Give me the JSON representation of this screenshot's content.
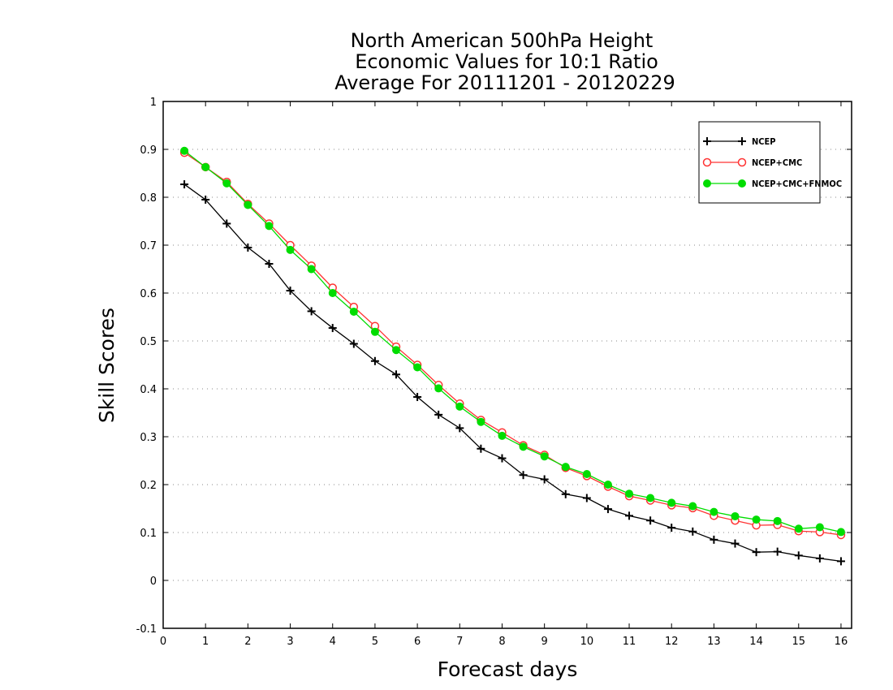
{
  "chart_data": {
    "type": "line",
    "title": [
      "North American 500hPa Height",
      "Economic Values for 10:1 Ratio",
      "Average For 20111201 - 20120229"
    ],
    "xlabel": "Forecast days",
    "ylabel": "Skill Scores",
    "xlim": [
      0,
      16.25
    ],
    "ylim": [
      -0.1,
      1
    ],
    "x_ticks": [
      0,
      1,
      2,
      3,
      4,
      5,
      6,
      7,
      8,
      9,
      10,
      11,
      12,
      13,
      14,
      15,
      16
    ],
    "y_ticks": [
      -0.1,
      0,
      0.1,
      0.2,
      0.3,
      0.4,
      0.5,
      0.6,
      0.7,
      0.8,
      0.9,
      1
    ],
    "y_tick_labels": [
      "-0.1",
      "0",
      "0.1",
      "0.2",
      "0.3",
      "0.4",
      "0.5",
      "0.6",
      "0.7",
      "0.8",
      "0.9",
      "1"
    ],
    "grid": "horizontal-dotted",
    "legend_position": "top-right",
    "x": [
      0.5,
      1,
      1.5,
      2,
      2.5,
      3,
      3.5,
      4,
      4.5,
      5,
      5.5,
      6,
      6.5,
      7,
      7.5,
      8,
      8.5,
      9,
      9.5,
      10,
      10.5,
      11,
      11.5,
      12,
      12.5,
      13,
      13.5,
      14,
      14.5,
      15,
      15.5,
      16
    ],
    "series": [
      {
        "name": "NCEP",
        "color": "#000000",
        "marker": "plus",
        "values": [
          0.827,
          0.795,
          0.745,
          0.695,
          0.661,
          0.605,
          0.562,
          0.527,
          0.494,
          0.458,
          0.43,
          0.383,
          0.346,
          0.318,
          0.275,
          0.255,
          0.22,
          0.211,
          0.18,
          0.172,
          0.149,
          0.135,
          0.125,
          0.11,
          0.102,
          0.085,
          0.077,
          0.059,
          0.06,
          0.052,
          0.046,
          0.04
        ]
      },
      {
        "name": "NCEP+CMC",
        "color": "#ff3333",
        "marker": "open-circle",
        "values": [
          0.893,
          0.863,
          0.832,
          0.786,
          0.745,
          0.7,
          0.657,
          0.611,
          0.571,
          0.531,
          0.488,
          0.45,
          0.408,
          0.369,
          0.335,
          0.309,
          0.282,
          0.262,
          0.235,
          0.218,
          0.196,
          0.176,
          0.167,
          0.157,
          0.151,
          0.135,
          0.125,
          0.115,
          0.116,
          0.103,
          0.101,
          0.095
        ]
      },
      {
        "name": "NCEP+CMC+FNMOC",
        "color": "#00dd00",
        "marker": "filled-circle",
        "values": [
          0.897,
          0.863,
          0.829,
          0.784,
          0.74,
          0.69,
          0.65,
          0.6,
          0.561,
          0.519,
          0.481,
          0.445,
          0.401,
          0.363,
          0.331,
          0.302,
          0.279,
          0.259,
          0.237,
          0.222,
          0.2,
          0.181,
          0.172,
          0.162,
          0.155,
          0.143,
          0.134,
          0.127,
          0.124,
          0.108,
          0.111,
          0.101
        ]
      }
    ]
  }
}
